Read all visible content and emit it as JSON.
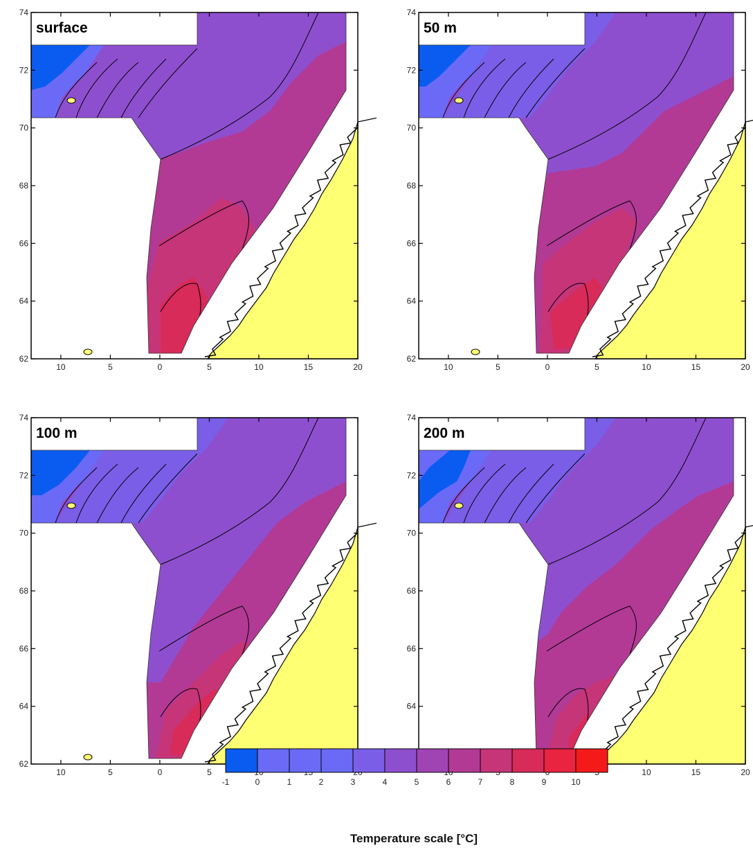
{
  "panels": [
    {
      "label": "surface"
    },
    {
      "label": "50 m"
    },
    {
      "label": "100 m"
    },
    {
      "label": "200 m"
    }
  ],
  "axes": {
    "x_ticks": [
      "10",
      "5",
      "0",
      "5",
      "10",
      "15",
      "20"
    ],
    "y_ticks": [
      "74",
      "72",
      "70",
      "68",
      "66",
      "64",
      "62"
    ]
  },
  "legend": {
    "title": "Temperature scale [°C]",
    "ticks": [
      "-1",
      "0",
      "1",
      "2",
      "3",
      "4",
      "5",
      "6",
      "7",
      "8",
      "9",
      "10"
    ],
    "colors": [
      "#0a5cf0",
      "#6a6af7",
      "#6a6af7",
      "#6a6af7",
      "#7a5ee8",
      "#8e4fcf",
      "#a044b3",
      "#b23a95",
      "#c63578",
      "#d82b5a",
      "#e82440",
      "#f51a1a"
    ]
  },
  "map_colors": {
    "land": "#ffff73",
    "ocean_blue": "#1464f0",
    "coast_line": "#000000"
  }
}
